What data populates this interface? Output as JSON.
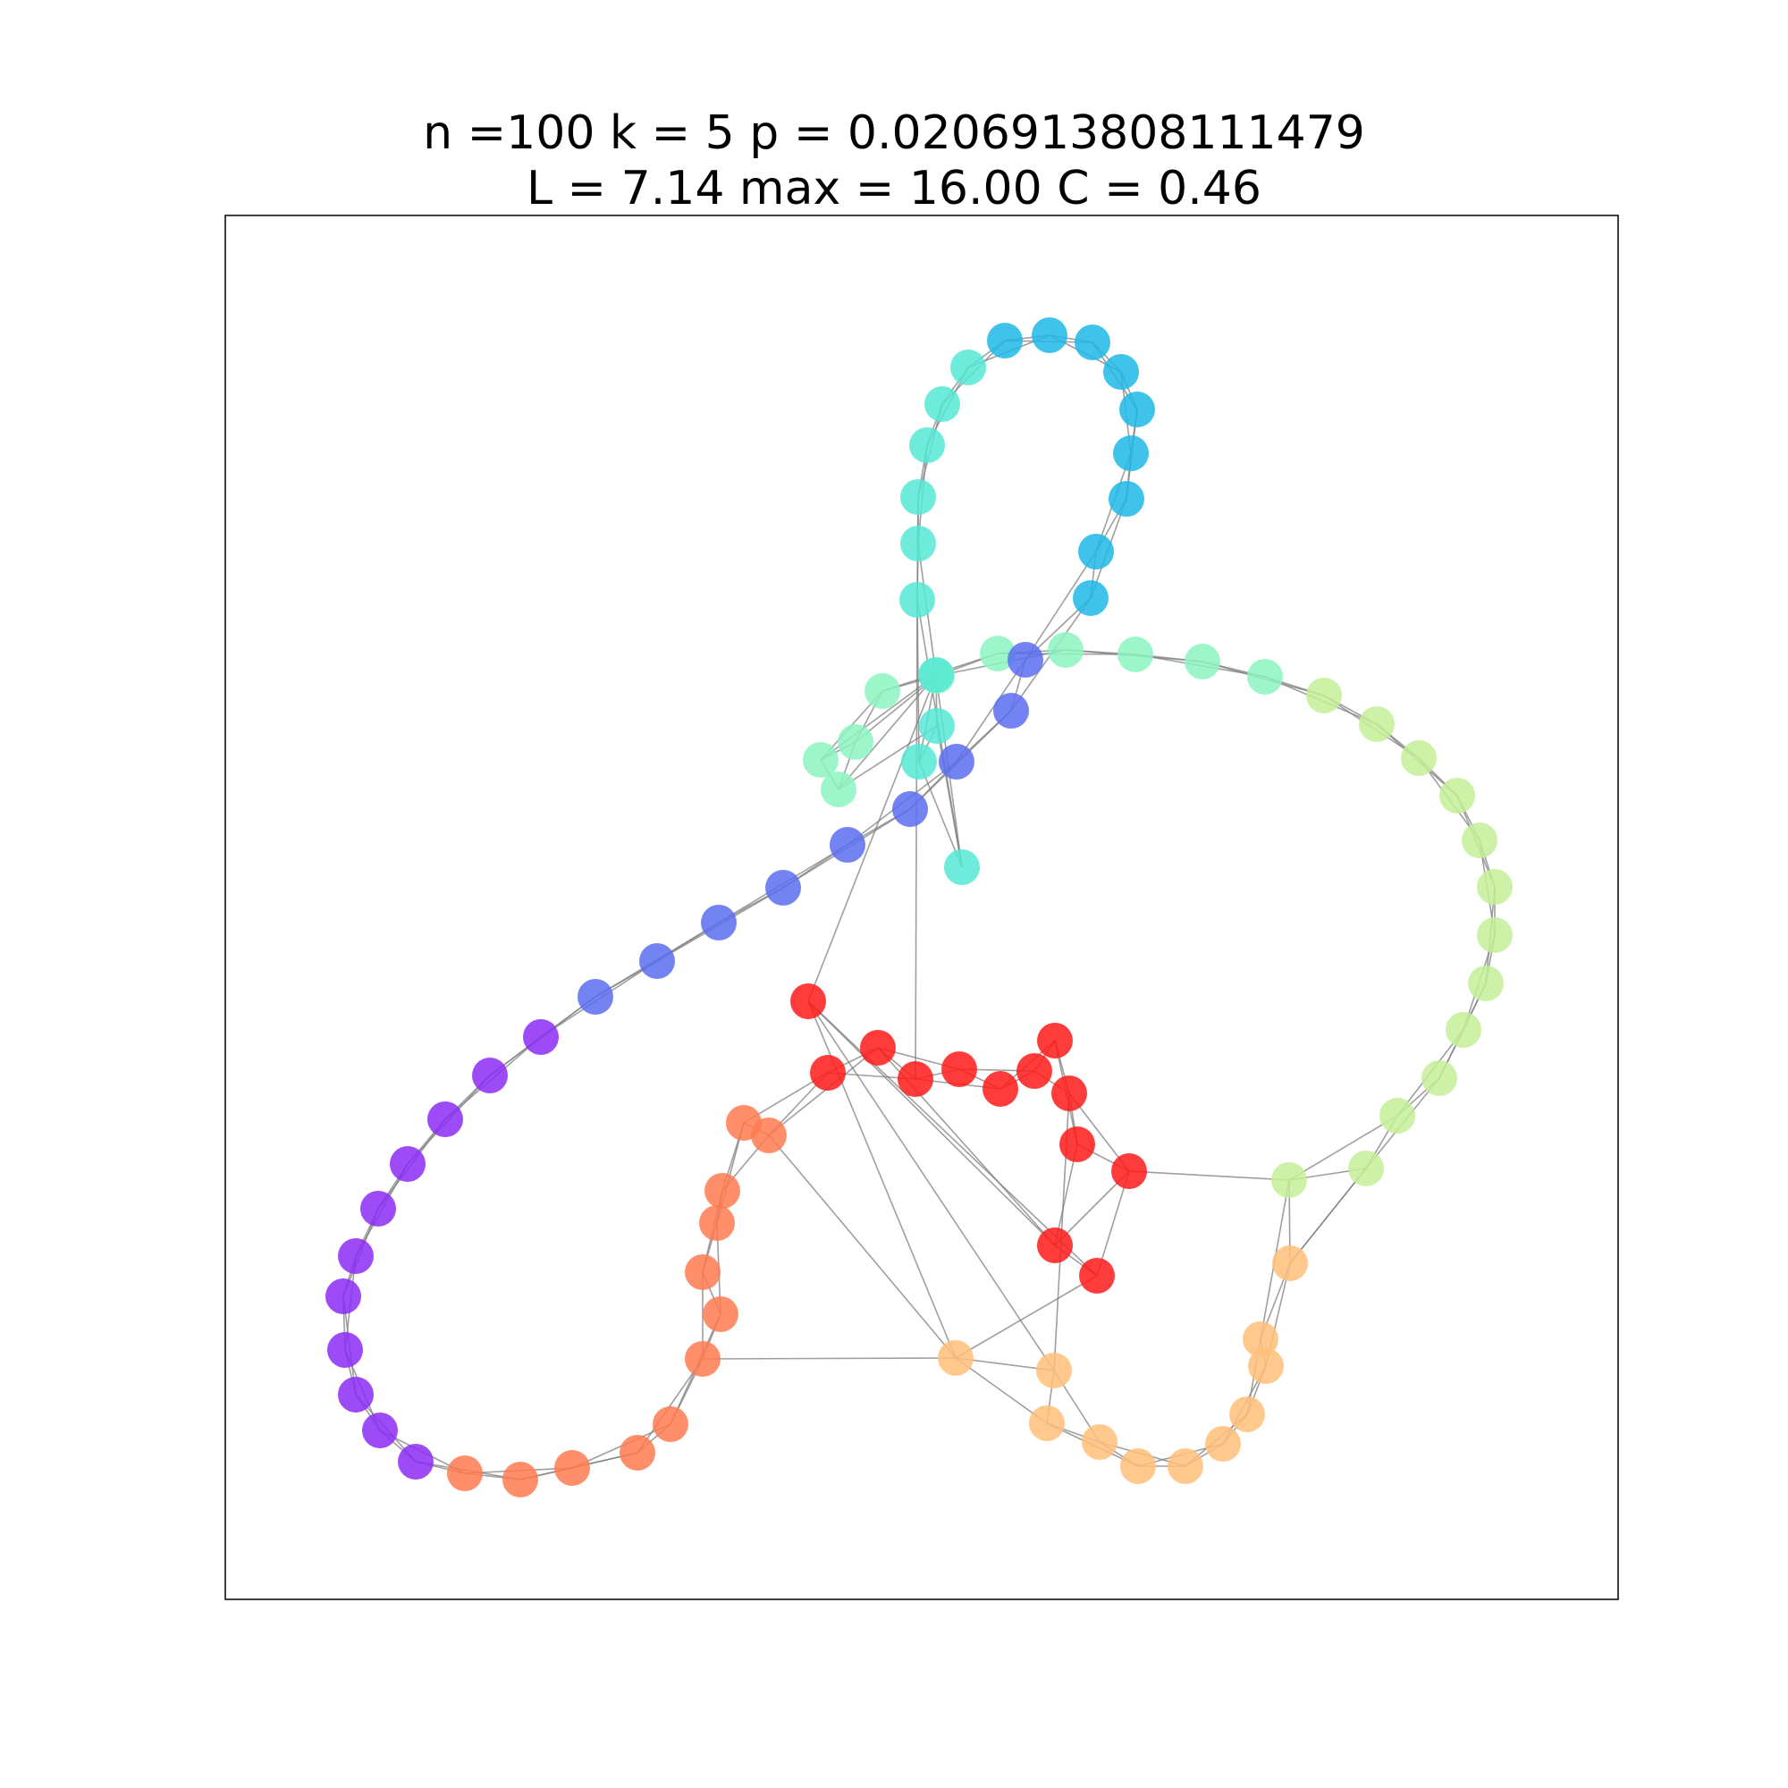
{
  "title_line1": "n =100 k = 5 p = 0.0206913808111479",
  "title_line2": "L = 7.14 max = 16.00 C = 0.46",
  "graph": {
    "n": 100,
    "k": 5,
    "p": 0.0206913808111479,
    "L": 7.14,
    "max": 16.0,
    "C": 0.46,
    "colors": {
      "purple": "#8b2cf5",
      "blue": "#5a6ff0",
      "sky": "#1fb8e6",
      "turquoise": "#55e8d4",
      "mint": "#8cf5c0",
      "lime": "#c4ef96",
      "sand": "#ffc07a",
      "coral": "#ff7a50",
      "red": "#ff1a1a"
    }
  }
}
